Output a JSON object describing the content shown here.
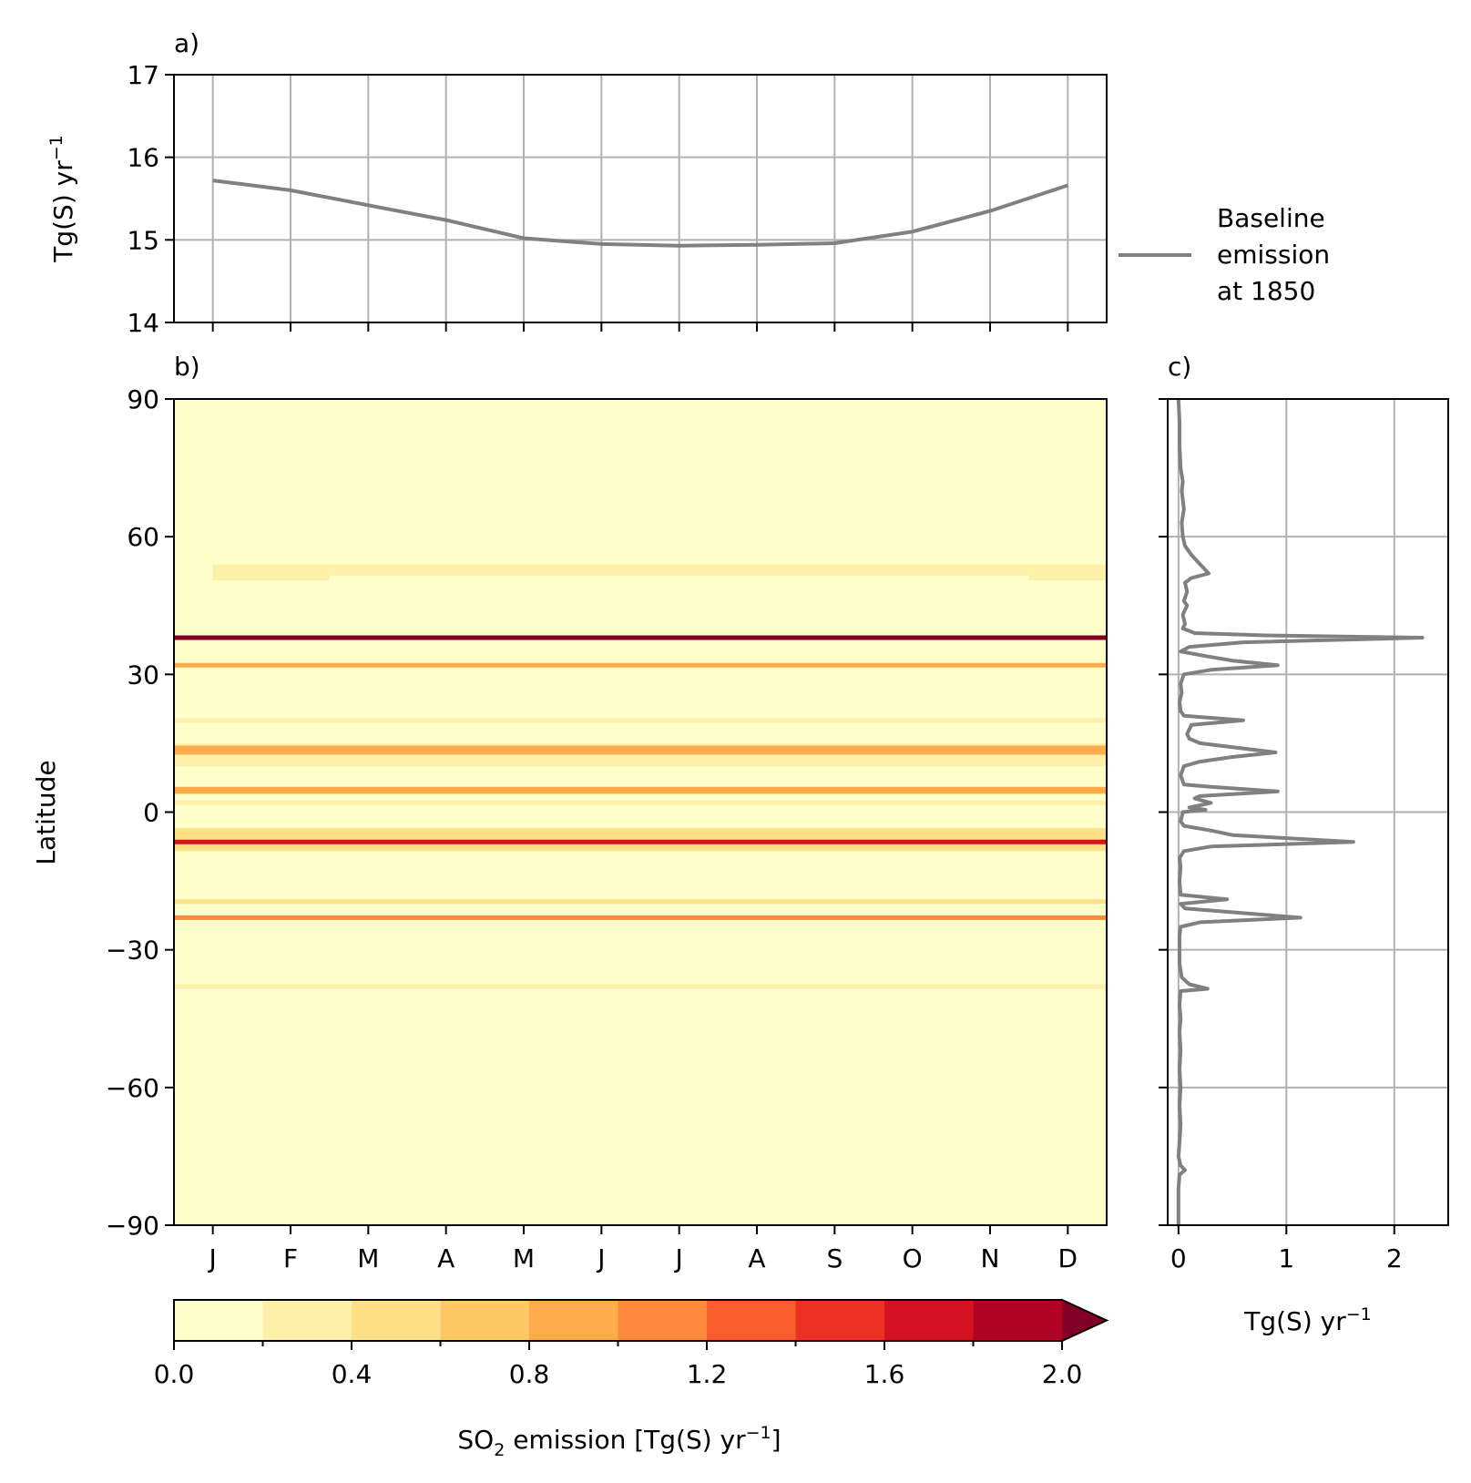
{
  "chart_data": [
    {
      "panel": "a)",
      "type": "line",
      "ylabel": "Tg(S) yr",
      "ylabel_sup": "−1",
      "ylim": [
        14,
        17
      ],
      "yticks": [
        "14",
        "15",
        "16",
        "17"
      ],
      "categories": [
        "J",
        "F",
        "M",
        "A",
        "M",
        "J",
        "J",
        "A",
        "S",
        "O",
        "N",
        "D"
      ],
      "series": [
        {
          "name": "Baseline emission at 1850",
          "values": [
            15.72,
            15.6,
            15.42,
            15.24,
            15.02,
            14.95,
            14.93,
            14.94,
            14.96,
            15.1,
            15.35,
            15.66
          ]
        }
      ],
      "grid": true,
      "legend_position": "right",
      "legend_lines": [
        "Baseline",
        "emission",
        "at 1850"
      ]
    },
    {
      "panel": "b)",
      "type": "heatmap",
      "ylabel": "Latitude",
      "ylim": [
        -90,
        90
      ],
      "yticks": [
        "90",
        "60",
        "30",
        "0",
        "−30",
        "−60",
        "−90"
      ],
      "xticks": [
        "J",
        "F",
        "M",
        "A",
        "M",
        "J",
        "J",
        "A",
        "S",
        "O",
        "N",
        "D"
      ],
      "background_value": 0.05,
      "bands": [
        {
          "lat_from": 50.5,
          "lat_to": 54.0,
          "value": 0.3,
          "months_from": 1,
          "months_to": 2.5
        },
        {
          "lat_from": 50.5,
          "lat_to": 54.0,
          "value": 0.3,
          "months_from": 11.5,
          "months_to": 12.5
        },
        {
          "lat_from": 51.5,
          "lat_to": 54.0,
          "value": 0.3,
          "months_from": 2.5,
          "months_to": 11.5
        },
        {
          "lat_from": 37.5,
          "lat_to": 38.5,
          "value": 2.2
        },
        {
          "lat_from": 31.5,
          "lat_to": 32.5,
          "value": 0.9
        },
        {
          "lat_from": 19.5,
          "lat_to": 20.5,
          "value": 0.3
        },
        {
          "lat_from": 10.0,
          "lat_to": 15.0,
          "value": 0.3
        },
        {
          "lat_from": 12.5,
          "lat_to": 14.5,
          "value": 0.9
        },
        {
          "lat_from": 4.0,
          "lat_to": 5.5,
          "value": 0.9
        },
        {
          "lat_from": 1.5,
          "lat_to": 2.5,
          "value": 0.3
        },
        {
          "lat_from": -8.5,
          "lat_to": -3.5,
          "value": 0.4
        },
        {
          "lat_from": -7.0,
          "lat_to": -6.0,
          "value": 1.7
        },
        {
          "lat_from": -20.0,
          "lat_to": -19.0,
          "value": 0.4
        },
        {
          "lat_from": -23.5,
          "lat_to": -22.5,
          "value": 1.1
        },
        {
          "lat_from": -38.5,
          "lat_to": -37.5,
          "value": 0.3
        }
      ]
    },
    {
      "panel": "c)",
      "type": "line",
      "xlabel": "Tg(S) yr",
      "xlabel_sup": "−1",
      "xlim": [
        -0.1,
        2.5
      ],
      "xticks": [
        "0",
        "1",
        "2"
      ],
      "ylim": [
        -90,
        90
      ],
      "profile": [
        [
          90,
          0.0
        ],
        [
          85,
          0.01
        ],
        [
          80,
          0.01
        ],
        [
          75,
          0.02
        ],
        [
          72,
          0.04
        ],
        [
          70,
          0.03
        ],
        [
          66,
          0.05
        ],
        [
          63,
          0.03
        ],
        [
          60,
          0.04
        ],
        [
          58,
          0.06
        ],
        [
          56,
          0.12
        ],
        [
          54,
          0.2
        ],
        [
          52,
          0.28
        ],
        [
          51,
          0.12
        ],
        [
          50,
          0.06
        ],
        [
          48,
          0.08
        ],
        [
          46,
          0.05
        ],
        [
          45,
          0.08
        ],
        [
          43,
          0.04
        ],
        [
          41,
          0.06
        ],
        [
          40,
          0.04
        ],
        [
          39,
          0.15
        ],
        [
          38.5,
          0.8
        ],
        [
          38,
          2.26
        ],
        [
          37,
          0.6
        ],
        [
          36,
          0.1
        ],
        [
          35,
          0.02
        ],
        [
          34,
          0.25
        ],
        [
          33,
          0.5
        ],
        [
          32,
          0.92
        ],
        [
          31,
          0.3
        ],
        [
          30,
          0.05
        ],
        [
          28,
          0.02
        ],
        [
          26,
          0.03
        ],
        [
          24,
          0.01
        ],
        [
          22,
          0.02
        ],
        [
          21,
          0.05
        ],
        [
          20,
          0.6
        ],
        [
          19,
          0.12
        ],
        [
          17,
          0.08
        ],
        [
          16,
          0.1
        ],
        [
          15,
          0.2
        ],
        [
          13,
          0.9
        ],
        [
          12,
          0.5
        ],
        [
          11,
          0.2
        ],
        [
          10,
          0.05
        ],
        [
          8,
          0.02
        ],
        [
          6,
          0.05
        ],
        [
          5.5,
          0.3
        ],
        [
          4.5,
          0.92
        ],
        [
          3.5,
          0.2
        ],
        [
          3,
          0.15
        ],
        [
          2,
          0.3
        ],
        [
          1,
          0.1
        ],
        [
          0.5,
          0.25
        ],
        [
          0,
          0.04
        ],
        [
          -1,
          0.03
        ],
        [
          -2,
          0.02
        ],
        [
          -3,
          0.05
        ],
        [
          -4,
          0.3
        ],
        [
          -5,
          0.5
        ],
        [
          -6.5,
          1.62
        ],
        [
          -7.5,
          0.3
        ],
        [
          -8.5,
          0.05
        ],
        [
          -10,
          0.01
        ],
        [
          -12,
          0.02
        ],
        [
          -15,
          0.01
        ],
        [
          -18,
          0.02
        ],
        [
          -19,
          0.45
        ],
        [
          -20,
          0.02
        ],
        [
          -21,
          0.06
        ],
        [
          -23,
          1.13
        ],
        [
          -24,
          0.2
        ],
        [
          -25,
          0.02
        ],
        [
          -27,
          0.01
        ],
        [
          -30,
          0.01
        ],
        [
          -33,
          0.01
        ],
        [
          -36,
          0.03
        ],
        [
          -37.5,
          0.1
        ],
        [
          -38.5,
          0.27
        ],
        [
          -39,
          0.02
        ],
        [
          -42,
          0.01
        ],
        [
          -45,
          0.02
        ],
        [
          -48,
          0.01
        ],
        [
          -52,
          0.02
        ],
        [
          -56,
          0.01
        ],
        [
          -60,
          0.02
        ],
        [
          -64,
          0.01
        ],
        [
          -68,
          0.02
        ],
        [
          -72,
          0.01
        ],
        [
          -75,
          0.0
        ],
        [
          -77,
          0.02
        ],
        [
          -78,
          0.06
        ],
        [
          -79,
          0.01
        ],
        [
          -82,
          0.0
        ],
        [
          -86,
          0.0
        ],
        [
          -90,
          0.0
        ]
      ],
      "grid": true
    }
  ],
  "colorbar": {
    "label_main": "SO",
    "label_sub": "2",
    "label_rest": " emission [Tg(S) yr",
    "label_sup": "−1",
    "label_end": "]",
    "bounds": [
      0.0,
      0.2,
      0.4,
      0.6,
      0.8,
      1.0,
      1.2,
      1.4,
      1.6,
      1.8,
      2.0
    ],
    "tick_labels": [
      "0.0",
      "0.4",
      "0.8",
      "1.2",
      "1.6",
      "2.0"
    ],
    "colors": [
      "#ffffcc",
      "#fff0a9",
      "#fee087",
      "#fec965",
      "#feab4b",
      "#fd893c",
      "#fa5c2e",
      "#ec3023",
      "#d31121",
      "#af0225"
    ],
    "extend_color": "#800026",
    "extend": "max"
  }
}
